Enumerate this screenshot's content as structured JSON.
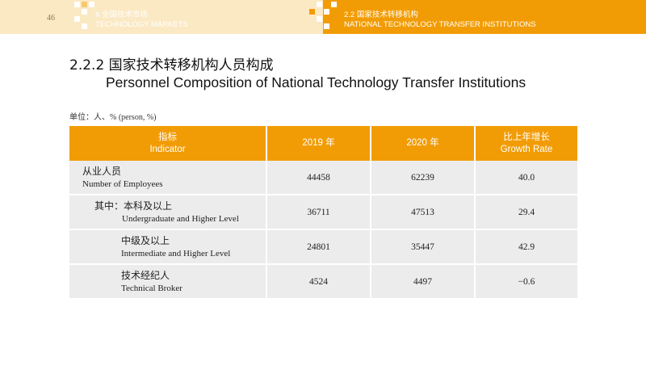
{
  "header": {
    "page_number": "46",
    "left_section_cn": "II 全国技术市场",
    "left_section_en": "TECHNOLOGY MARKETS",
    "right_section_cn": "2.2 国家技术转移机构",
    "right_section_en": "NATIONAL TECHNOLOGY TRANSFER INSTITUTIONS",
    "colors": {
      "left_band": "#fbe9c4",
      "right_band": "#f29c05"
    }
  },
  "title": {
    "cn": "2.2.2 国家技术转移机构人员构成",
    "en": "Personnel Composition of National Technology Transfer Institutions"
  },
  "unit": "单位：人、%  (person, %)",
  "table": {
    "headers": [
      {
        "cn": "指标",
        "en": "Indicator"
      },
      {
        "cn": "2019 年"
      },
      {
        "cn": "2020 年"
      },
      {
        "cn": "比上年增长",
        "en": "Growth Rate"
      }
    ],
    "rows": [
      {
        "cn": "从业人员",
        "en": "Number of Employees",
        "y2019": "44458",
        "y2020": "62239",
        "growth": "40.0"
      },
      {
        "cn": "其中：本科及以上",
        "en": "Undergraduate and Higher Level",
        "y2019": "36711",
        "y2020": "47513",
        "growth": "29.4"
      },
      {
        "cn": "中级及以上",
        "en": "Intermediate and Higher Level",
        "y2019": "24801",
        "y2020": "35447",
        "growth": "42.9"
      },
      {
        "cn": "技术经纪人",
        "en": "Technical Broker",
        "y2019": "4524",
        "y2020": "4497",
        "growth": "−0.6"
      }
    ],
    "colors": {
      "header_bg": "#f29c05",
      "row_bg": "#ececec"
    }
  }
}
